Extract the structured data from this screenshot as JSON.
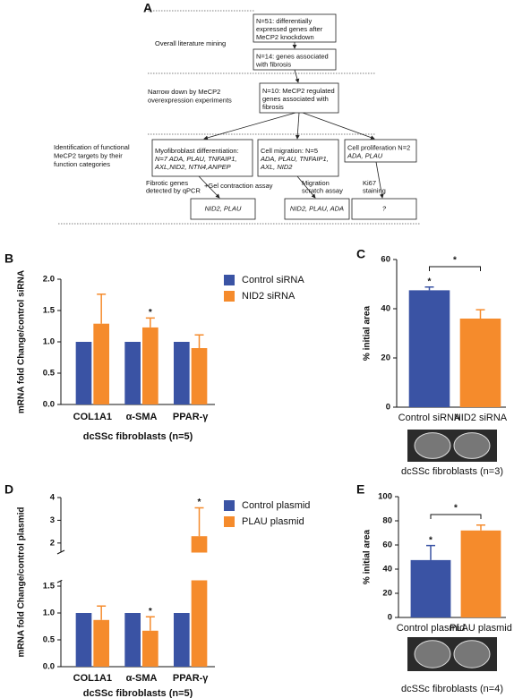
{
  "panel_a": {
    "label": "A",
    "stage_labels": [
      {
        "lines": [
          "Overall literature mining"
        ]
      },
      {
        "lines": [
          "Narrow down by MeCP2",
          "overexpression experiments"
        ]
      },
      {
        "lines": [
          "Identification of functional",
          "MeCP2 targets by their",
          "function categories"
        ]
      }
    ],
    "boxes": [
      {
        "lines": [
          "N=51: differentially",
          "expressed genes after",
          "MeCP2 knockdown"
        ]
      },
      {
        "lines": [
          "N=14: genes associated",
          "with fibrosis"
        ]
      },
      {
        "lines": [
          "N=10: MeCP2 regulated",
          "genes associated with",
          "fibrosis"
        ]
      },
      {
        "lines": [
          "Myofibroblast differentiation:",
          "N=7 ADA, PLAU, TNFAIP1,",
          "AXL,NID2, NTN4,ANPEP"
        ]
      },
      {
        "lines": [
          "Cell migration: N=5",
          "ADA, PLAU, TNFAIP1,",
          "AXL, NID2"
        ]
      },
      {
        "lines": [
          "Cell proliferation N=2",
          "ADA, PLAU"
        ]
      },
      {
        "lines": [
          "NID2, PLAU"
        ]
      },
      {
        "lines": [
          "NID2, PLAU, ADA"
        ]
      },
      {
        "lines": [
          "?"
        ]
      }
    ],
    "assays": [
      {
        "lines": [
          "Fibrotic genes",
          "detected by qPCR"
        ]
      },
      {
        "lines": [
          "+Gel contraction assay"
        ]
      },
      {
        "lines": [
          "Migration",
          "scratch assay"
        ]
      },
      {
        "lines": [
          "Ki67",
          "staining"
        ]
      }
    ]
  },
  "chart_data": [
    {
      "type": "bar",
      "panel_label": "B",
      "y_label": "mRNA fold Change/control siRNA",
      "x_label": "dcSSc fibroblasts (n=5)",
      "categories": [
        "COL1A1",
        "α-SMA",
        "PPAR-γ"
      ],
      "series": [
        {
          "name": "Control siRNA",
          "color": "#3a53a4",
          "values": [
            1,
            1,
            1
          ]
        },
        {
          "name": "NID2 siRNA",
          "color": "#f58b2c",
          "values": [
            1.29,
            1.23,
            0.9
          ],
          "errors": [
            0.47,
            0.15,
            0.21
          ],
          "significance": [
            null,
            "*",
            null
          ]
        }
      ],
      "ylim": [
        0,
        2
      ],
      "yticks": [
        {
          "value": 0,
          "label": "0.0"
        },
        0.5,
        {
          "value": 1,
          "label": "1.0"
        },
        1.5,
        {
          "value": 2,
          "label": "2.0"
        }
      ],
      "legend": "right"
    },
    {
      "type": "bar",
      "panel_label": "C",
      "y_label": "% initial area",
      "x_label": "dcSSc fibroblasts (n=3)",
      "categories": [
        "Control siRNA",
        "NID2 siRNA"
      ],
      "values": [
        47.5,
        36
      ],
      "errors": [
        1.3,
        3.6
      ],
      "colors": [
        "#3a53a4",
        "#f58b2c"
      ],
      "ylim": [
        0,
        60
      ],
      "yticks": [
        0,
        20,
        40,
        60
      ],
      "significance": "*"
    },
    {
      "type": "bar",
      "panel_label": "D",
      "y_label": "mRNA fold Change/control plasmid",
      "x_label": "dcSSc fibroblasts (n=5)",
      "categories": [
        "COL1A1",
        "α-SMA",
        "PPAR-γ"
      ],
      "series": [
        {
          "name": "Control plasmid",
          "color": "#3a53a4",
          "values": [
            1,
            1,
            1
          ]
        },
        {
          "name": "PLAU plasmid",
          "color": "#f58b2c",
          "values": [
            0.87,
            0.67,
            2.3
          ],
          "errors": [
            0.26,
            0.26,
            1.25
          ],
          "significance": [
            null,
            "*",
            "*"
          ]
        }
      ],
      "ylim": [
        0,
        4
      ],
      "y_break": 1.6,
      "yticks": [
        {
          "value": 0,
          "label": "0.0"
        },
        0.5,
        {
          "value": 1,
          "label": "1.0"
        },
        1.5,
        2,
        3,
        4
      ],
      "legend": "right"
    },
    {
      "type": "bar",
      "panel_label": "E",
      "y_label": "% initial area",
      "x_label": "dcSSc fibroblasts (n=4)",
      "categories": [
        "Control plasmid",
        "PLAU plasmid"
      ],
      "values": [
        47.5,
        72
      ],
      "errors": [
        12,
        4.5
      ],
      "colors": [
        "#3a53a4",
        "#f58b2c"
      ],
      "ylim": [
        0,
        100
      ],
      "yticks": [
        0,
        20,
        40,
        60,
        80,
        100
      ],
      "significance": "*"
    }
  ]
}
